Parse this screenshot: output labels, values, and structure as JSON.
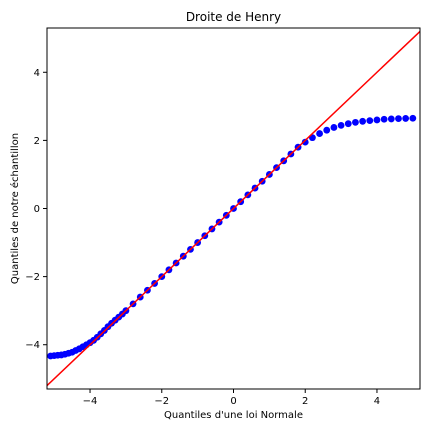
{
  "chart_data": {
    "type": "scatter",
    "title": "Droite de Henry",
    "xlabel": "Quantiles d'une loi Normale",
    "ylabel": "Quantiles de notre échantillon",
    "xlim": [
      -5.2,
      5.2
    ],
    "ylim": [
      -5.3,
      5.3
    ],
    "xticks": [
      -4,
      -2,
      0,
      2,
      4
    ],
    "yticks": [
      -4,
      -2,
      0,
      2,
      4
    ],
    "grid": false,
    "series": [
      {
        "kind": "points",
        "color": "#0000ff",
        "x": [
          -5.1,
          -5.0,
          -4.9,
          -4.8,
          -4.7,
          -4.6,
          -4.5,
          -4.4,
          -4.3,
          -4.2,
          -4.1,
          -4.0,
          -3.9,
          -3.8,
          -3.7,
          -3.6,
          -3.5,
          -3.4,
          -3.3,
          -3.2,
          -3.1,
          -3.0,
          -2.8,
          -2.6,
          -2.4,
          -2.2,
          -2.0,
          -1.8,
          -1.6,
          -1.4,
          -1.2,
          -1.0,
          -0.8,
          -0.6,
          -0.4,
          -0.2,
          0.0,
          0.2,
          0.4,
          0.6,
          0.8,
          1.0,
          1.2,
          1.4,
          1.6,
          1.8,
          2.0,
          2.2,
          2.4,
          2.6,
          2.8,
          3.0,
          3.2,
          3.4,
          3.6,
          3.8,
          4.0,
          4.2,
          4.4,
          4.6,
          4.8,
          5.0
        ],
        "y": [
          -4.33,
          -4.32,
          -4.31,
          -4.3,
          -4.28,
          -4.25,
          -4.22,
          -4.17,
          -4.12,
          -4.06,
          -4.0,
          -3.94,
          -3.87,
          -3.78,
          -3.68,
          -3.58,
          -3.47,
          -3.37,
          -3.28,
          -3.19,
          -3.1,
          -3.0,
          -2.8,
          -2.6,
          -2.4,
          -2.2,
          -2.0,
          -1.8,
          -1.6,
          -1.4,
          -1.2,
          -1.0,
          -0.8,
          -0.6,
          -0.4,
          -0.2,
          0.0,
          0.2,
          0.4,
          0.6,
          0.8,
          1.0,
          1.2,
          1.4,
          1.6,
          1.8,
          1.95,
          2.08,
          2.2,
          2.3,
          2.38,
          2.44,
          2.49,
          2.53,
          2.56,
          2.58,
          2.6,
          2.62,
          2.63,
          2.64,
          2.645,
          2.65
        ]
      },
      {
        "kind": "reference-line",
        "color": "#ff0000",
        "x": [
          -5.2,
          5.2
        ],
        "y": [
          -5.2,
          5.2
        ]
      }
    ]
  }
}
